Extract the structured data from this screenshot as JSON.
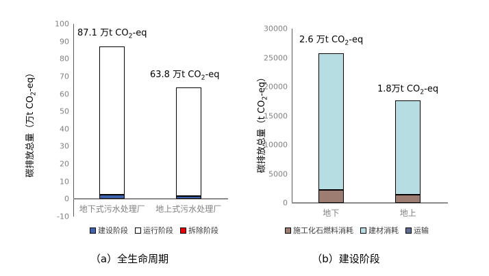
{
  "chart_data": [
    {
      "type": "bar",
      "stacked": true,
      "grid": false,
      "legend_position": "bottom",
      "caption": "（a）全生命周期",
      "ylabel": {
        "pre": "碳排放总量（万t CO",
        "sub": "2",
        "post": "-eq）"
      },
      "ylim": [
        -10,
        100
      ],
      "yticks": [
        100,
        90,
        80,
        70,
        60,
        50,
        40,
        30,
        20,
        10,
        0,
        -10
      ],
      "categories": [
        "地下式污水处理厂",
        "地上式污水处理厂"
      ],
      "series": [
        {
          "name": "建设阶段",
          "color": "#3e64ae",
          "values": [
            2.6,
            1.8
          ]
        },
        {
          "name": "运行阶段",
          "color": "#ffffff",
          "values": [
            84.5,
            62.0
          ]
        },
        {
          "name": "拆除阶段",
          "color": "#e60000",
          "values": [
            0,
            0
          ]
        }
      ],
      "totals": [
        87.1,
        63.8
      ],
      "bar_labels": [
        {
          "pre": "87.1 万t CO",
          "sub": "2",
          "post": "-eq"
        },
        {
          "pre": "63.8 万t CO",
          "sub": "2",
          "post": "-eq"
        }
      ]
    },
    {
      "type": "bar",
      "stacked": true,
      "grid": false,
      "legend_position": "bottom",
      "caption": "（b）建设阶段",
      "ylabel": {
        "pre": "碳排放总量（t CO",
        "sub": "2",
        "post": "-eq）"
      },
      "ylim": [
        0,
        30000
      ],
      "yticks": [
        30000,
        25000,
        20000,
        15000,
        10000,
        5000,
        0
      ],
      "categories": [
        "地下",
        "地上"
      ],
      "series": [
        {
          "name": "施工化石燃料消耗",
          "color": "#9d7c72",
          "values": [
            2200,
            1450
          ]
        },
        {
          "name": "建材消耗",
          "color": "#b5dde2",
          "values": [
            23600,
            16150
          ]
        },
        {
          "name": "运输",
          "color": "#5f6d91",
          "values": [
            0,
            0
          ]
        }
      ],
      "totals": [
        25800,
        17600
      ],
      "bar_labels": [
        {
          "pre": "2.6 万t CO",
          "sub": "2",
          "post": "-eq"
        },
        {
          "pre": "1.8万t CO",
          "sub": "2",
          "post": "-eq"
        }
      ]
    }
  ]
}
